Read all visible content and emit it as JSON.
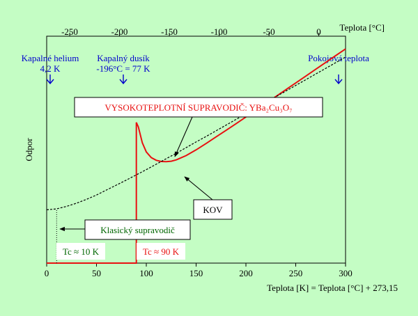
{
  "chart_data": {
    "type": "line",
    "xlabel": "Teplota [K] = Teplota [°C] + 273,15",
    "x2label": "Teplota [°C]",
    "ylabel": "Odpor",
    "xlim": [
      0,
      300
    ],
    "x_ticks": [
      0,
      50,
      100,
      150,
      200,
      250,
      300
    ],
    "x2_ticks": [
      -250,
      -200,
      -150,
      -100,
      -50,
      0
    ],
    "markers": [
      {
        "lines": [
          "Kapalné helium",
          "4,2 K"
        ],
        "x": 4.2
      },
      {
        "lines": [
          "Kapalný dusík",
          "-196°C = 77 K"
        ],
        "x": 77
      },
      {
        "lines": [
          "Pokojová teplota"
        ],
        "x": 293
      }
    ],
    "series": [
      {
        "color": "#e81010",
        "style": "solid",
        "tc": 90,
        "x": [
          0,
          90,
          90,
          92,
          96,
          100,
          105,
          110,
          115,
          120,
          125,
          130,
          140,
          150,
          160,
          170,
          180,
          190,
          200,
          210,
          220,
          230,
          240,
          250,
          260,
          270,
          280,
          290,
          300
        ],
        "y": [
          0,
          0,
          0.62,
          0.6,
          0.53,
          0.49,
          0.465,
          0.453,
          0.448,
          0.447,
          0.449,
          0.455,
          0.474,
          0.499,
          0.527,
          0.556,
          0.585,
          0.614,
          0.644,
          0.674,
          0.704,
          0.734,
          0.764,
          0.794,
          0.824,
          0.854,
          0.884,
          0.914,
          0.944
        ]
      },
      {
        "color": "#000000",
        "style": "dashed",
        "x": [
          0,
          10,
          20,
          30,
          40,
          50,
          60,
          70,
          80,
          90,
          100,
          110,
          120,
          130,
          140,
          150,
          160,
          170,
          180,
          190,
          200,
          210,
          220,
          230,
          240,
          250,
          260,
          270,
          280,
          290,
          300
        ],
        "y": [
          0.235,
          0.239,
          0.25,
          0.264,
          0.281,
          0.3,
          0.322,
          0.344,
          0.366,
          0.389,
          0.412,
          0.436,
          0.46,
          0.484,
          0.509,
          0.534,
          0.558,
          0.583,
          0.608,
          0.633,
          0.658,
          0.683,
          0.708,
          0.733,
          0.758,
          0.783,
          0.808,
          0.833,
          0.858,
          0.883,
          0.908
        ]
      },
      {
        "color": "#000000",
        "style": "dotted",
        "tc": 10,
        "x": [
          10,
          10
        ],
        "y": [
          0,
          0.235
        ]
      }
    ],
    "annotations": [
      {
        "text": "VYSOKOTEPLOTNÍ SUPRAVODIČ: YBa₂Cu₃O₇",
        "color": "#e81010",
        "points_to": [
          130,
          0.455
        ]
      },
      {
        "text": "KOV",
        "color": "#000000",
        "points_to": [
          140,
          0.509
        ]
      },
      {
        "text": "Klasický supravodič",
        "color": "#006600",
        "points_to": [
          12,
          0.19
        ]
      },
      {
        "text": "Tc ≈ 10 K",
        "color": "#006600",
        "points_to": null
      },
      {
        "text": "Tc ≈ 90 K",
        "color": "#e81010",
        "points_to": null
      }
    ]
  }
}
